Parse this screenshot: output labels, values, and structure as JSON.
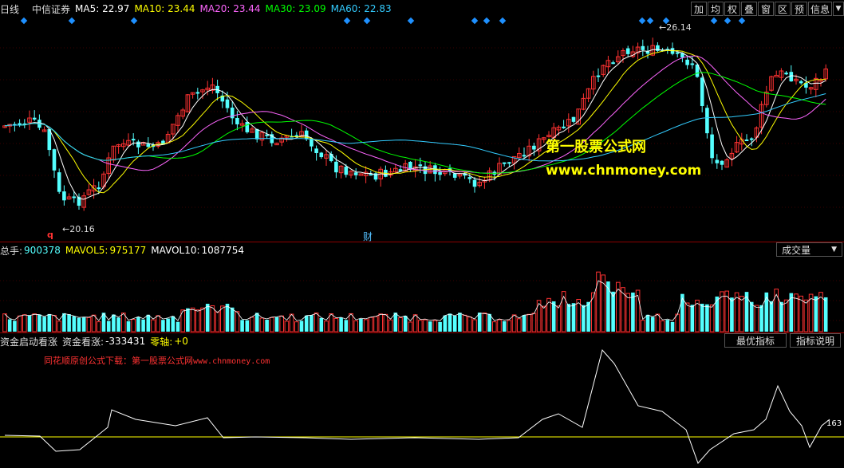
{
  "header": {
    "period": "日线",
    "stock": "中信证券",
    "ma": [
      {
        "label": "MA5: 22.97",
        "color": "#ffffff"
      },
      {
        "label": "MA10: 23.44",
        "color": "#ffff00"
      },
      {
        "label": "MA20: 23.44",
        "color": "#ff66ff"
      },
      {
        "label": "MA30: 23.09",
        "color": "#00ff00"
      },
      {
        "label": "MA60: 22.83",
        "color": "#33ccff"
      }
    ],
    "tools": [
      "加",
      "均",
      "权",
      "叠",
      "窗",
      "区",
      "预",
      "信息"
    ]
  },
  "price": {
    "high_label": "26.14",
    "low_label": "20.16",
    "q_marker": "q",
    "cai_marker": "财",
    "watermark_title": "第一股票公式网",
    "watermark_url": "www.chnmoney.com"
  },
  "volume": {
    "total_label": "总手:",
    "total_value": "900378",
    "mavol5_label": "MAVOL5:",
    "mavol5_value": "975177",
    "mavol10_label": "MAVOL10:",
    "mavol10_value": "1087754",
    "dropdown": "成交量"
  },
  "indicator": {
    "name": "资金启动看涨",
    "label1": "资金看涨:",
    "value1": "-333431",
    "label2": "零轴:",
    "value2": "+0",
    "btn_best": "最优指标",
    "btn_help": "指标说明",
    "promo": "同花顺原创公式下载：第一股票公式网",
    "promo_url": "www.chnmoney.com",
    "last_value": "163"
  },
  "colors": {
    "up": "#ff3232",
    "down": "#54ffff",
    "grid": "#8b0000",
    "signal": "#1e90ff"
  }
}
